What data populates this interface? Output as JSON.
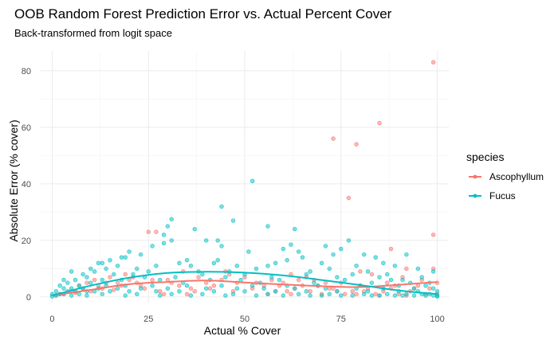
{
  "chart_data": {
    "type": "scatter",
    "title": "OOB Random Forest Prediction Error vs. Actual Percent Cover",
    "subtitle": "Back-transformed from logit space",
    "xlabel": "Actual % Cover",
    "ylabel": "Absolute Error (% cover)",
    "xlim": [
      -3,
      103
    ],
    "ylim": [
      -2,
      87
    ],
    "x_ticks": [
      0,
      25,
      50,
      75,
      100
    ],
    "y_ticks": [
      0,
      20,
      40,
      60,
      80
    ],
    "grid": true,
    "legend": {
      "title": "species",
      "placement": "right"
    },
    "series": [
      {
        "name": "Ascophyllum",
        "color": "#F8766D",
        "points": [
          [
            99,
            83
          ],
          [
            85,
            61.5
          ],
          [
            73,
            56
          ],
          [
            79,
            54
          ],
          [
            77,
            35
          ],
          [
            99,
            22
          ],
          [
            25,
            23
          ],
          [
            27,
            23
          ],
          [
            88,
            17
          ],
          [
            92,
            10
          ],
          [
            80,
            9
          ],
          [
            62,
            8
          ],
          [
            20,
            6
          ],
          [
            14,
            5
          ],
          [
            12,
            4
          ],
          [
            8,
            3
          ],
          [
            5,
            2
          ],
          [
            3,
            1
          ],
          [
            1,
            0.5
          ],
          [
            2,
            1
          ],
          [
            6,
            1.5
          ],
          [
            10,
            2
          ],
          [
            16,
            2.5
          ],
          [
            18,
            4
          ],
          [
            22,
            5
          ],
          [
            24,
            3
          ],
          [
            28,
            2
          ],
          [
            30,
            6
          ],
          [
            33,
            4
          ],
          [
            36,
            3
          ],
          [
            40,
            5
          ],
          [
            42,
            4
          ],
          [
            44,
            6
          ],
          [
            48,
            5
          ],
          [
            50,
            7
          ],
          [
            52,
            3
          ],
          [
            55,
            4
          ],
          [
            58,
            2
          ],
          [
            60,
            5
          ],
          [
            63,
            3
          ],
          [
            65,
            4
          ],
          [
            67,
            2
          ],
          [
            68,
            6
          ],
          [
            70,
            1
          ],
          [
            72,
            3
          ],
          [
            74,
            2
          ],
          [
            76,
            1
          ],
          [
            78,
            2
          ],
          [
            80,
            4
          ],
          [
            82,
            3
          ],
          [
            84,
            1
          ],
          [
            86,
            2
          ],
          [
            88,
            3
          ],
          [
            90,
            1
          ],
          [
            93,
            2
          ],
          [
            95,
            4
          ],
          [
            97,
            1
          ],
          [
            98,
            3
          ],
          [
            100,
            5
          ],
          [
            100,
            1
          ],
          [
            96,
            6
          ],
          [
            91,
            7
          ],
          [
            87,
            5
          ],
          [
            83,
            8
          ],
          [
            71,
            5
          ],
          [
            66,
            7
          ],
          [
            57,
            6
          ],
          [
            46,
            8
          ],
          [
            38,
            7
          ],
          [
            34,
            9
          ],
          [
            26,
            6
          ],
          [
            19,
            8
          ],
          [
            15,
            7
          ],
          [
            11,
            6
          ],
          [
            9,
            5
          ],
          [
            7,
            4
          ],
          [
            13,
            3
          ],
          [
            17,
            5
          ],
          [
            21,
            7
          ],
          [
            23,
            4
          ],
          [
            31,
            5
          ],
          [
            37,
            2
          ],
          [
            41,
            3
          ],
          [
            47,
            2
          ],
          [
            53,
            5
          ],
          [
            59,
            4
          ],
          [
            61,
            2
          ],
          [
            64,
            6
          ],
          [
            69,
            4
          ],
          [
            73,
            3
          ],
          [
            75,
            5
          ],
          [
            81,
            2
          ],
          [
            89,
            4
          ],
          [
            94,
            3
          ],
          [
            99,
            10
          ],
          [
            45,
            9
          ],
          [
            35,
            1
          ],
          [
            29,
            1
          ],
          [
            56,
            1
          ],
          [
            62,
            1
          ],
          [
            79,
            1
          ],
          [
            85,
            0.5
          ],
          [
            92,
            0.5
          ]
        ],
        "trend": [
          [
            0,
            0.5
          ],
          [
            10,
            2.5
          ],
          [
            20,
            4.5
          ],
          [
            30,
            5.3
          ],
          [
            40,
            5.8
          ],
          [
            50,
            5.1
          ],
          [
            60,
            4.4
          ],
          [
            70,
            3.8
          ],
          [
            80,
            3.5
          ],
          [
            90,
            4.3
          ],
          [
            100,
            5.3
          ]
        ]
      },
      {
        "name": "Fucus",
        "color": "#00BFC4",
        "points": [
          [
            52,
            41
          ],
          [
            44,
            32
          ],
          [
            31,
            27.5
          ],
          [
            47,
            27
          ],
          [
            30,
            25
          ],
          [
            56,
            25
          ],
          [
            37,
            24
          ],
          [
            63,
            24
          ],
          [
            29,
            22
          ],
          [
            31,
            20
          ],
          [
            40,
            20
          ],
          [
            43,
            20
          ],
          [
            77,
            20
          ],
          [
            29,
            19
          ],
          [
            62,
            18.5
          ],
          [
            26,
            18
          ],
          [
            44,
            18
          ],
          [
            71,
            18
          ],
          [
            75,
            17
          ],
          [
            60,
            17
          ],
          [
            20,
            16
          ],
          [
            51,
            16
          ],
          [
            64,
            16
          ],
          [
            73,
            15
          ],
          [
            23,
            15
          ],
          [
            81,
            15
          ],
          [
            92,
            15
          ],
          [
            65,
            14
          ],
          [
            84,
            14
          ],
          [
            19,
            14
          ],
          [
            35,
            13
          ],
          [
            43,
            13
          ],
          [
            33,
            12
          ],
          [
            42,
            12
          ],
          [
            12,
            12
          ],
          [
            15,
            13
          ],
          [
            18,
            14
          ],
          [
            13,
            12
          ],
          [
            17,
            11
          ],
          [
            61,
            13
          ],
          [
            58,
            12
          ],
          [
            70,
            12
          ],
          [
            86,
            12
          ],
          [
            27,
            11
          ],
          [
            36,
            11
          ],
          [
            48,
            11
          ],
          [
            56,
            11
          ],
          [
            79,
            11
          ],
          [
            89,
            11
          ],
          [
            95,
            10
          ],
          [
            99,
            9
          ],
          [
            10,
            10
          ],
          [
            14,
            10
          ],
          [
            22,
            10
          ],
          [
            25,
            9
          ],
          [
            38,
            9
          ],
          [
            46,
            9
          ],
          [
            53,
            10
          ],
          [
            67,
            9
          ],
          [
            72,
            10
          ],
          [
            82,
            9
          ],
          [
            87,
            8
          ],
          [
            5,
            9
          ],
          [
            8,
            8
          ],
          [
            11,
            9
          ],
          [
            16,
            8
          ],
          [
            21,
            8
          ],
          [
            24,
            7
          ],
          [
            32,
            7
          ],
          [
            39,
            8
          ],
          [
            45,
            7
          ],
          [
            50,
            8
          ],
          [
            57,
            7
          ],
          [
            66,
            8
          ],
          [
            74,
            7
          ],
          [
            78,
            8
          ],
          [
            85,
            7
          ],
          [
            91,
            6
          ],
          [
            96,
            7
          ],
          [
            3,
            6
          ],
          [
            6,
            6
          ],
          [
            9,
            7
          ],
          [
            13,
            6
          ],
          [
            18,
            6
          ],
          [
            28,
            6
          ],
          [
            34,
            5
          ],
          [
            41,
            6
          ],
          [
            49,
            6
          ],
          [
            54,
            5
          ],
          [
            59,
            6
          ],
          [
            68,
            5
          ],
          [
            76,
            6
          ],
          [
            83,
            5
          ],
          [
            88,
            6
          ],
          [
            93,
            5
          ],
          [
            98,
            5
          ],
          [
            2,
            4
          ],
          [
            4,
            5
          ],
          [
            7,
            4
          ],
          [
            10,
            5
          ],
          [
            14,
            4
          ],
          [
            19,
            4
          ],
          [
            26,
            4
          ],
          [
            35,
            4
          ],
          [
            44,
            4
          ],
          [
            52,
            4
          ],
          [
            61,
            4
          ],
          [
            69,
            4
          ],
          [
            80,
            4
          ],
          [
            90,
            4
          ],
          [
            97,
            4
          ],
          [
            1,
            2
          ],
          [
            3,
            3
          ],
          [
            5,
            3
          ],
          [
            8,
            3
          ],
          [
            12,
            3
          ],
          [
            17,
            3
          ],
          [
            23,
            3
          ],
          [
            30,
            3
          ],
          [
            40,
            3
          ],
          [
            48,
            3
          ],
          [
            55,
            3
          ],
          [
            63,
            3
          ],
          [
            71,
            3
          ],
          [
            79,
            3
          ],
          [
            86,
            3
          ],
          [
            94,
            3
          ],
          [
            99,
            3
          ],
          [
            0,
            1
          ],
          [
            2,
            1
          ],
          [
            4,
            2
          ],
          [
            6,
            2
          ],
          [
            9,
            2
          ],
          [
            11,
            2
          ],
          [
            15,
            2
          ],
          [
            20,
            2
          ],
          [
            27,
            2
          ],
          [
            33,
            2
          ],
          [
            42,
            2
          ],
          [
            50,
            2
          ],
          [
            58,
            2
          ],
          [
            66,
            2
          ],
          [
            74,
            2
          ],
          [
            82,
            2
          ],
          [
            90,
            2
          ],
          [
            95,
            2
          ],
          [
            100,
            2
          ],
          [
            1,
            0.5
          ],
          [
            3,
            1
          ],
          [
            7,
            1
          ],
          [
            13,
            1
          ],
          [
            22,
            1
          ],
          [
            31,
            1
          ],
          [
            39,
            1
          ],
          [
            47,
            1
          ],
          [
            56,
            1
          ],
          [
            64,
            1
          ],
          [
            72,
            1
          ],
          [
            81,
            1
          ],
          [
            87,
            1
          ],
          [
            92,
            1
          ],
          [
            96,
            1
          ],
          [
            98,
            1
          ],
          [
            100,
            0.5
          ],
          [
            99,
            0.5
          ],
          [
            97,
            0.5
          ],
          [
            94,
            0.5
          ],
          [
            91,
            0.5
          ],
          [
            89,
            0.5
          ],
          [
            85,
            0.5
          ],
          [
            83,
            0.5
          ],
          [
            78,
            0.5
          ],
          [
            75,
            0.5
          ],
          [
            70,
            0.5
          ],
          [
            67,
            0.5
          ],
          [
            60,
            0.5
          ],
          [
            53,
            0.5
          ],
          [
            45,
            0.5
          ],
          [
            36,
            0.5
          ],
          [
            28,
            0.5
          ],
          [
            19,
            0.5
          ],
          [
            9,
            0.5
          ],
          [
            5,
            0.5
          ],
          [
            0,
            0.2
          ],
          [
            100,
            0.2
          ]
        ],
        "trend": [
          [
            0,
            0.5
          ],
          [
            10,
            4
          ],
          [
            20,
            6.8
          ],
          [
            30,
            8.5
          ],
          [
            40,
            8.9
          ],
          [
            50,
            8.6
          ],
          [
            60,
            7.6
          ],
          [
            70,
            6
          ],
          [
            80,
            4.2
          ],
          [
            90,
            2.3
          ],
          [
            100,
            1
          ]
        ]
      }
    ]
  }
}
